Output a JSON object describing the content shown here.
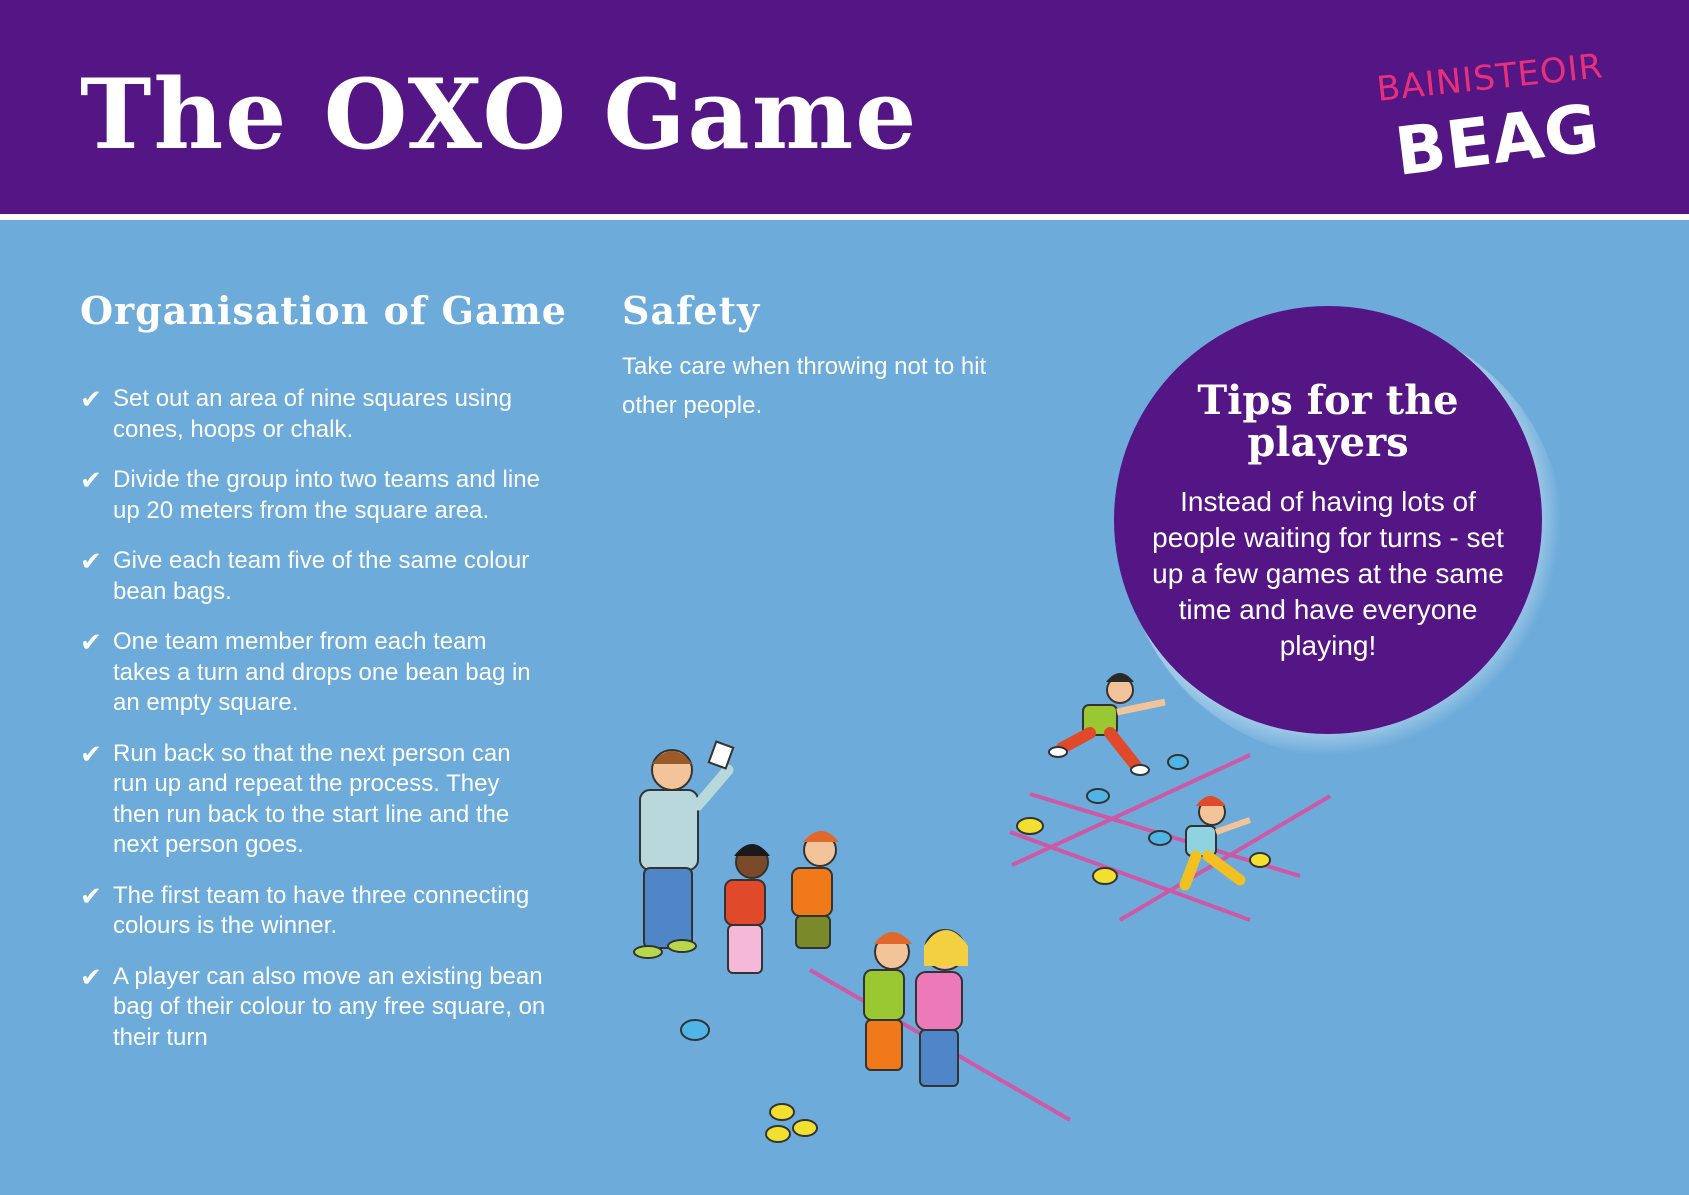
{
  "header": {
    "title": "The OXO Game",
    "logo": {
      "top_text": "BAINISTEOIR",
      "bottom_text": "BEAG"
    }
  },
  "organisation": {
    "heading": "Organisation of Game",
    "check_symbol": "✔",
    "steps": [
      "Set out an area of nine squares using cones, hoops or chalk.",
      "Divide the group into two teams and line up 20 meters from the square area.",
      "Give each team five of the same colour bean bags.",
      "One team member from each team takes a turn and drops one bean bag in an empty square.",
      "Run back so that the next person can run up and repeat the process. They then run back to the start line and the next person goes.",
      "The first team to have three connecting colours is the winner.",
      "A player can also move an existing bean bag of their colour to any free square, on their turn"
    ]
  },
  "safety": {
    "heading": "Safety",
    "text": "Take care when throwing not to hit other people."
  },
  "tips": {
    "heading": "Tips for the players",
    "text": "Instead of having lots of people waiting for turns - set up a few games at the same time and have everyone playing!"
  },
  "colors": {
    "header_purple": "#541685",
    "background_blue": "#6cabda",
    "logo_pink": "#e8307a",
    "chalk_pink": "#e04a9b",
    "bean_bag_blue": "#4fb4e6",
    "bean_bag_yellow": "#f2e030"
  }
}
